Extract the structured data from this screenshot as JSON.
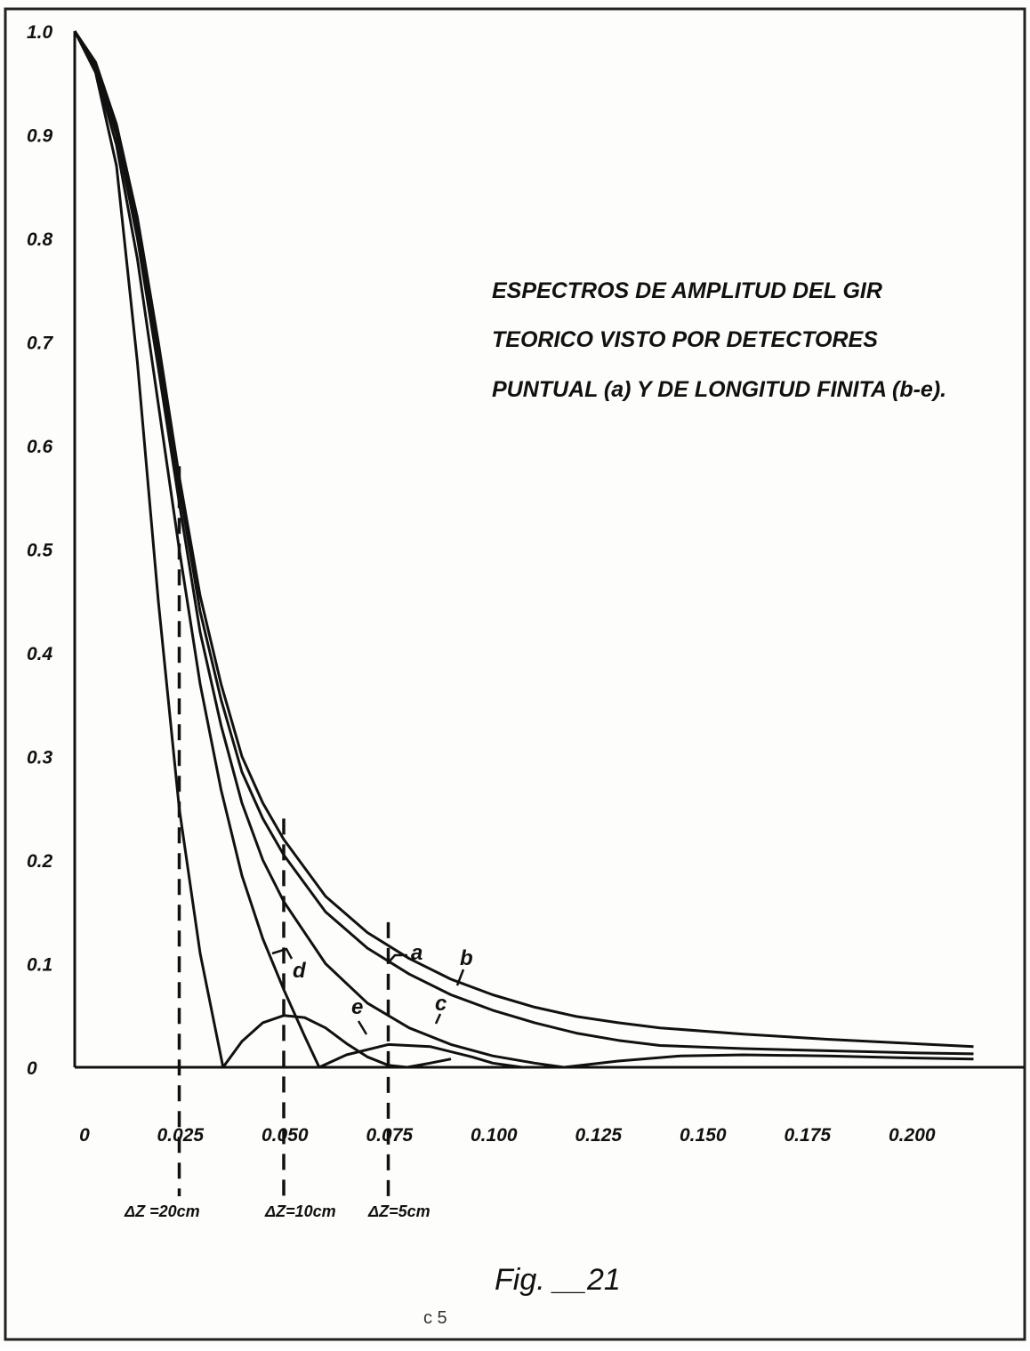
{
  "figure": {
    "caption": "Fig. __21",
    "page_number": "c 5"
  },
  "chart_data": {
    "type": "line",
    "title_lines": [
      "ESPECTROS DE AMPLITUD DEL GIR",
      "TEORICO VISTO POR DETECTORES",
      "PUNTUAL (a) Y DE LONGITUD FINITA (b-e)."
    ],
    "xlabel": "",
    "ylabel": "",
    "xlim": [
      0,
      0.2
    ],
    "ylim": [
      0,
      1.0
    ],
    "grid": false,
    "legend": "inline labels",
    "x_ticks": [
      "0",
      "0.025",
      "0.050",
      "0.075",
      "0.100",
      "0.125",
      "0.150",
      "0.175",
      "0.200"
    ],
    "y_ticks": [
      "0",
      "0.1",
      "0.2",
      "0.3",
      "0.4",
      "0.5",
      "0.6",
      "0.7",
      "0.8",
      "0.9",
      "1.0"
    ],
    "series": [
      {
        "name": "a",
        "x": [
          0,
          0.005,
          0.01,
          0.015,
          0.02,
          0.025,
          0.03,
          0.035,
          0.04,
          0.045,
          0.05,
          0.06,
          0.07,
          0.08,
          0.09,
          0.1,
          0.11,
          0.12,
          0.13,
          0.14,
          0.16,
          0.18,
          0.2,
          0.215
        ],
        "y": [
          1.0,
          0.97,
          0.91,
          0.82,
          0.7,
          0.57,
          0.455,
          0.37,
          0.3,
          0.255,
          0.22,
          0.165,
          0.13,
          0.105,
          0.085,
          0.07,
          0.058,
          0.049,
          0.043,
          0.038,
          0.032,
          0.027,
          0.023,
          0.02
        ]
      },
      {
        "name": "b",
        "x": [
          0,
          0.005,
          0.01,
          0.015,
          0.02,
          0.025,
          0.03,
          0.035,
          0.04,
          0.045,
          0.05,
          0.06,
          0.07,
          0.08,
          0.09,
          0.1,
          0.11,
          0.12,
          0.13,
          0.14,
          0.16,
          0.18,
          0.2,
          0.215
        ],
        "y": [
          1.0,
          0.968,
          0.905,
          0.81,
          0.69,
          0.56,
          0.44,
          0.355,
          0.285,
          0.24,
          0.205,
          0.15,
          0.115,
          0.09,
          0.07,
          0.055,
          0.043,
          0.033,
          0.026,
          0.021,
          0.018,
          0.016,
          0.014,
          0.013
        ]
      },
      {
        "name": "c",
        "x": [
          0,
          0.005,
          0.01,
          0.015,
          0.02,
          0.025,
          0.03,
          0.035,
          0.04,
          0.045,
          0.05,
          0.06,
          0.07,
          0.08,
          0.09,
          0.1,
          0.11,
          0.117,
          0.13,
          0.145,
          0.16,
          0.18,
          0.2,
          0.215
        ],
        "y": [
          1.0,
          0.965,
          0.9,
          0.8,
          0.675,
          0.545,
          0.42,
          0.33,
          0.255,
          0.2,
          0.16,
          0.1,
          0.062,
          0.038,
          0.022,
          0.011,
          0.004,
          0.0,
          0.006,
          0.011,
          0.012,
          0.011,
          0.009,
          0.008
        ]
      },
      {
        "name": "d",
        "x": [
          0,
          0.005,
          0.01,
          0.015,
          0.02,
          0.025,
          0.03,
          0.035,
          0.04,
          0.045,
          0.05,
          0.055,
          0.0585,
          0.065,
          0.075,
          0.085,
          0.095,
          0.1,
          0.107
        ],
        "y": [
          1.0,
          0.962,
          0.89,
          0.78,
          0.64,
          0.5,
          0.37,
          0.268,
          0.185,
          0.124,
          0.075,
          0.03,
          0.0,
          0.012,
          0.022,
          0.02,
          0.01,
          0.004,
          0.0
        ]
      },
      {
        "name": "e",
        "x": [
          0,
          0.005,
          0.01,
          0.015,
          0.02,
          0.025,
          0.03,
          0.0355,
          0.04,
          0.045,
          0.05,
          0.055,
          0.06,
          0.065,
          0.07,
          0.075,
          0.0795,
          0.085,
          0.09
        ],
        "y": [
          1.0,
          0.96,
          0.87,
          0.68,
          0.45,
          0.25,
          0.11,
          0.0,
          0.025,
          0.043,
          0.05,
          0.048,
          0.038,
          0.023,
          0.01,
          0.002,
          0.0,
          0.004,
          0.008
        ]
      }
    ],
    "cutoffs": [
      {
        "x": 0.025,
        "label": "ΔZ =20cm"
      },
      {
        "x": 0.05,
        "label": "ΔZ=10cm"
      },
      {
        "x": 0.075,
        "label": "ΔZ=5cm"
      }
    ]
  }
}
